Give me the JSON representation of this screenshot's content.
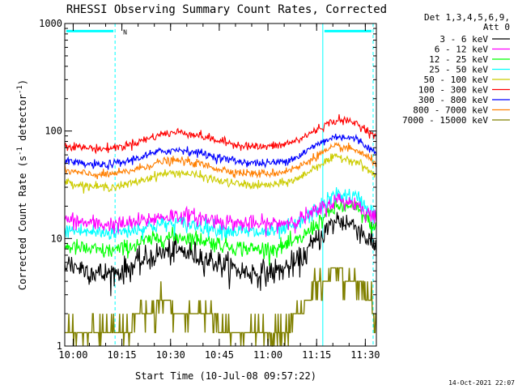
{
  "chart_data": {
    "type": "line",
    "title": "RHESSI Observing Summary Count Rates, Corrected",
    "xlabel": "Start Time (10-Jul-08 09:57:22)",
    "ylabel": "Corrected Count Rate (s",
    "ylabel_sup1": "-1",
    "ylabel_mid": " detector",
    "ylabel_sup2": "-1",
    "ylabel_end": ")",
    "y_scale": "log",
    "ylim": [
      1,
      1000
    ],
    "xlim_minutes": [
      0,
      96
    ],
    "x_tick_labels": [
      "10:00",
      "10:15",
      "10:30",
      "10:45",
      "11:00",
      "11:15",
      "11:30"
    ],
    "x_tick_minutes": [
      2.6,
      17.6,
      32.6,
      47.6,
      62.6,
      77.6,
      92.6
    ],
    "y_tick_labels": [
      "1",
      "10",
      "100",
      "1000"
    ],
    "y_tick_values": [
      1,
      10,
      100,
      1000
    ],
    "legend_header": [
      "Det 1,3,4,5,6,9,",
      "Att 0"
    ],
    "legend_placement": "right",
    "night_flag_label": "N",
    "timestamp": "14-Oct-2021 22:07",
    "series": [
      {
        "name": "3 - 6 keV",
        "color": "#000000",
        "x": [
          0,
          6,
          12,
          18,
          24,
          30,
          36,
          42,
          48,
          54,
          60,
          66,
          72,
          78,
          84,
          90,
          96
        ],
        "y": [
          6,
          5.2,
          4.6,
          5,
          6.2,
          7.4,
          7.6,
          6.8,
          5.8,
          5,
          4.7,
          5,
          6,
          10,
          15,
          13,
          8
        ]
      },
      {
        "name": "6 - 12 keV",
        "color": "#ff00ff",
        "x": [
          0,
          6,
          12,
          18,
          24,
          30,
          36,
          42,
          48,
          54,
          60,
          66,
          72,
          78,
          84,
          90,
          96
        ],
        "y": [
          15,
          14,
          13.5,
          13.5,
          14.5,
          16,
          16.5,
          15.5,
          14.5,
          13.8,
          13.5,
          13.8,
          15,
          18,
          23,
          21,
          15
        ]
      },
      {
        "name": "12 - 25 keV",
        "color": "#00ff00",
        "x": [
          0,
          6,
          12,
          18,
          24,
          30,
          36,
          42,
          48,
          54,
          60,
          66,
          72,
          78,
          84,
          90,
          96
        ],
        "y": [
          8.5,
          8,
          7.6,
          8,
          9.3,
          10.2,
          10.4,
          9.8,
          8.8,
          8.2,
          7.9,
          8.2,
          9.5,
          14,
          20,
          19,
          12
        ]
      },
      {
        "name": "25 - 50 keV",
        "color": "#00ffff",
        "x": [
          0,
          6,
          12,
          18,
          24,
          30,
          36,
          42,
          48,
          54,
          60,
          66,
          72,
          78,
          84,
          90,
          96
        ],
        "y": [
          12,
          11.6,
          11.3,
          11.6,
          12.6,
          13.6,
          13.8,
          13.1,
          12.2,
          11.6,
          11.3,
          11.7,
          13.5,
          19,
          26,
          24,
          16
        ]
      },
      {
        "name": "50 - 100 keV",
        "color": "#cccc00",
        "x": [
          0,
          6,
          12,
          18,
          24,
          30,
          36,
          42,
          48,
          54,
          60,
          66,
          72,
          78,
          84,
          90,
          96
        ],
        "y": [
          34,
          31,
          30,
          31,
          35,
          40,
          41,
          38,
          34,
          32,
          31,
          32,
          36,
          48,
          58,
          52,
          38
        ]
      },
      {
        "name": "100 - 300 keV",
        "color": "#ff0000",
        "x": [
          0,
          6,
          12,
          18,
          24,
          30,
          36,
          42,
          48,
          54,
          60,
          66,
          72,
          78,
          84,
          90,
          96
        ],
        "y": [
          74,
          70,
          68,
          72,
          82,
          94,
          98,
          90,
          80,
          74,
          71,
          73,
          82,
          105,
          128,
          118,
          88
        ]
      },
      {
        "name": "300 - 800 keV",
        "color": "#0000ff",
        "x": [
          0,
          6,
          12,
          18,
          24,
          30,
          36,
          42,
          48,
          54,
          60,
          66,
          72,
          78,
          84,
          90,
          96
        ],
        "y": [
          52,
          49,
          48,
          51,
          58,
          65,
          67,
          62,
          56,
          52,
          50,
          51,
          58,
          76,
          90,
          84,
          62
        ]
      },
      {
        "name": "800 - 7000 keV",
        "color": "#ff7f00",
        "x": [
          0,
          6,
          12,
          18,
          24,
          30,
          36,
          42,
          48,
          54,
          60,
          66,
          72,
          78,
          84,
          90,
          96
        ],
        "y": [
          43,
          40,
          39,
          41,
          46,
          52,
          53,
          49,
          44,
          41,
          40,
          41,
          46,
          60,
          72,
          66,
          50
        ]
      },
      {
        "name": "7000 - 15000 keV",
        "color": "#808000",
        "x": [
          0,
          6,
          12,
          18,
          24,
          30,
          36,
          42,
          48,
          54,
          60,
          66,
          72,
          78,
          84,
          90,
          96
        ],
        "y": [
          1.5,
          1.6,
          1.4,
          1.3,
          2.1,
          2.4,
          2.2,
          2.0,
          1.6,
          1.3,
          1.3,
          1.4,
          1.8,
          4.0,
          5.0,
          3.8,
          2.0
        ]
      }
    ],
    "attenuator_bars": [
      {
        "x_start": 0,
        "x_end": 15.5,
        "y": 850,
        "color": "#00ffff"
      },
      {
        "x_start": 79.5,
        "x_end": 95,
        "y": 850,
        "color": "#00ffff"
      }
    ],
    "vertical_markers": [
      {
        "x": 15.5,
        "color": "#00ffff",
        "style": "dashed"
      },
      {
        "x": 79.5,
        "color": "#00ffff",
        "style": "solid"
      },
      {
        "x": 95,
        "color": "#00ffff",
        "style": "dashed"
      }
    ]
  }
}
